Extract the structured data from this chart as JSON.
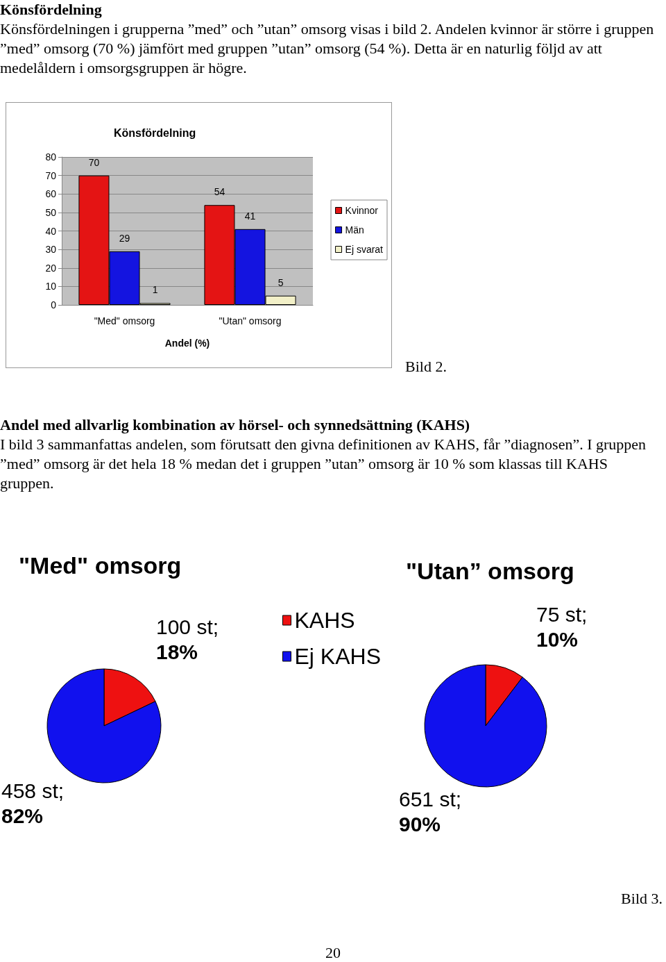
{
  "chart_data": [
    {
      "type": "bar",
      "title": "Könsfördelning",
      "xlabel": "Andel (%)",
      "categories": [
        "\"Med\" omsorg",
        "\"Utan\" omsorg"
      ],
      "series": [
        {
          "name": "Kvinnor",
          "color": "#e41414",
          "values": [
            70,
            54
          ]
        },
        {
          "name": "Män",
          "color": "#1414e0",
          "values": [
            29,
            41
          ]
        },
        {
          "name": "Ej svarat",
          "color": "#f2f0c8",
          "values": [
            1,
            5
          ]
        }
      ],
      "ylim": [
        0,
        80
      ],
      "yticks": [
        0,
        10,
        20,
        30,
        40,
        50,
        60,
        70,
        80
      ],
      "grid": "y",
      "legend": "right",
      "data_labels": true,
      "annotations": [
        "Könsfördelning",
        "Könsfördelningen i grupperna ”med” och ”utan” omsorg visas i bild 2. Andelen kvinnor är större i gruppen ”med” omsorg (70 %) jämfört med gruppen ”utan” omsorg (54 %). Detta är en naturlig följd av att medelåldern i omsorgsgruppen är högre.",
        "Bild 2."
      ]
    },
    {
      "type": "pie",
      "title": "\"Med\" omsorg",
      "categories": [
        null,
        null
      ],
      "values": [
        100,
        458
      ],
      "colors": [
        "#ee1111",
        "#1111ee"
      ],
      "value_labels": [
        "100 st; 18%",
        "458 st; 82%"
      ],
      "legend": false,
      "annotations": [
        "Andel med allvarlig kombination av hörsel- och synnedsättning (KAHS)",
        "I bild 3 sammanfattas andelen, som förutsatt den givna definitionen av KAHS, får ”diagnosen”. I gruppen ”med” omsorg är det hela 18 % medan det i gruppen ”utan” omsorg är 10 % som klassas till KAHS gruppen."
      ]
    },
    {
      "type": "pie",
      "title": "\"Utan” omsorg",
      "categories": [
        "KAHS",
        "Ej KAHS"
      ],
      "values": [
        75,
        651
      ],
      "colors": [
        "#ee1111",
        "#1111ee"
      ],
      "value_labels": [
        "75 st; 10%",
        "651 st; 90%"
      ],
      "legend": "left",
      "annotations": [
        "Bild 3.",
        "20"
      ]
    }
  ]
}
